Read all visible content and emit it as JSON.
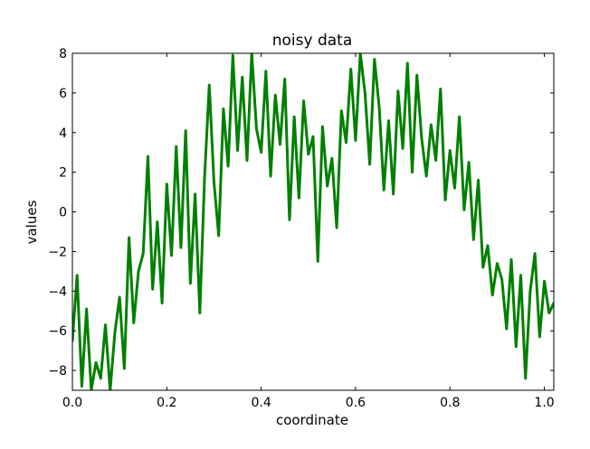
{
  "chart_data": {
    "type": "line",
    "title": "noisy data",
    "xlabel": "coordinate",
    "ylabel": "values",
    "xlim": [
      0.0,
      1.02
    ],
    "ylim": [
      -9,
      8
    ],
    "xticks": [
      0.0,
      0.2,
      0.4,
      0.6,
      0.8,
      1.0
    ],
    "xtick_labels": [
      "0.0",
      "0.2",
      "0.4",
      "0.6",
      "0.8",
      "1.0"
    ],
    "yticks": [
      8,
      6,
      4,
      2,
      0,
      -2,
      -4,
      -6,
      -8
    ],
    "ytick_labels": [
      "8",
      "6",
      "4",
      "2",
      "0",
      "−2",
      "−4",
      "−6",
      "−8"
    ],
    "grid": false,
    "legend": "none",
    "series": [
      {
        "color": "#008000",
        "x": [
          0.0,
          0.01,
          0.02,
          0.03,
          0.04,
          0.05,
          0.06,
          0.07,
          0.08,
          0.09,
          0.1,
          0.11,
          0.12,
          0.13,
          0.14,
          0.15,
          0.16,
          0.17,
          0.18,
          0.19,
          0.2,
          0.21,
          0.22,
          0.23,
          0.24,
          0.25,
          0.26,
          0.27,
          0.28,
          0.29,
          0.3,
          0.31,
          0.32,
          0.33,
          0.34,
          0.35,
          0.36,
          0.37,
          0.38,
          0.39,
          0.4,
          0.41,
          0.42,
          0.43,
          0.44,
          0.45,
          0.46,
          0.47,
          0.48,
          0.49,
          0.5,
          0.51,
          0.52,
          0.53,
          0.54,
          0.55,
          0.56,
          0.57,
          0.58,
          0.59,
          0.6,
          0.61,
          0.62,
          0.63,
          0.64,
          0.65,
          0.66,
          0.67,
          0.68,
          0.69,
          0.7,
          0.71,
          0.72,
          0.73,
          0.74,
          0.75,
          0.76,
          0.77,
          0.78,
          0.79,
          0.8,
          0.81,
          0.82,
          0.83,
          0.84,
          0.85,
          0.86,
          0.87,
          0.88,
          0.89,
          0.9,
          0.91,
          0.92,
          0.93,
          0.94,
          0.95,
          0.96,
          0.97,
          0.98,
          0.99,
          1.0,
          1.01,
          1.02
        ],
        "y": [
          -6.5,
          -3.2,
          -8.8,
          -4.9,
          -9.0,
          -7.6,
          -8.4,
          -5.7,
          -9.0,
          -6.1,
          -4.3,
          -7.9,
          -1.3,
          -5.6,
          -3.0,
          -2.1,
          2.8,
          -3.9,
          -0.5,
          -4.6,
          1.4,
          -2.2,
          3.3,
          -1.8,
          4.1,
          -3.6,
          0.9,
          -5.1,
          1.7,
          6.4,
          1.5,
          -1.2,
          5.2,
          2.3,
          7.9,
          3.1,
          6.8,
          2.6,
          8.0,
          4.2,
          3.0,
          7.1,
          1.8,
          5.9,
          3.4,
          6.7,
          -0.4,
          4.8,
          0.7,
          5.6,
          2.9,
          3.8,
          -2.5,
          4.3,
          1.3,
          2.7,
          -0.8,
          5.1,
          3.5,
          7.2,
          3.6,
          8.0,
          6.0,
          2.4,
          7.7,
          5.3,
          1.1,
          4.6,
          0.9,
          6.1,
          3.2,
          7.5,
          2.0,
          6.9,
          3.7,
          1.8,
          4.4,
          2.6,
          6.2,
          0.6,
          3.1,
          1.2,
          4.8,
          0.1,
          2.5,
          -1.4,
          1.6,
          -2.8,
          -1.7,
          -4.2,
          -2.6,
          -3.4,
          -5.9,
          -2.4,
          -6.8,
          -3.2,
          -8.4,
          -4.0,
          -2.1,
          -6.3,
          -3.5,
          -5.1,
          -4.6
        ]
      }
    ]
  }
}
